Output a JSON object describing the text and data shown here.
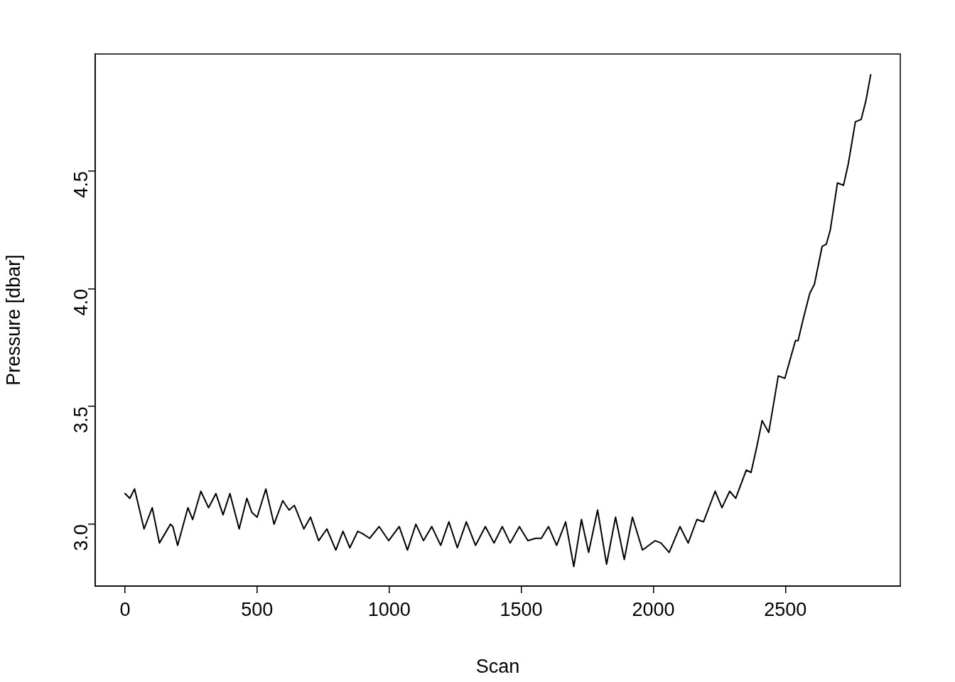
{
  "chart_data": {
    "type": "line",
    "xlabel": "Scan",
    "ylabel": "Pressure [dbar]",
    "marker": "none",
    "line_style": "solid",
    "color": "#000000",
    "x": [
      0,
      18,
      36,
      72,
      103,
      130,
      172,
      181,
      199,
      238,
      256,
      287,
      316,
      344,
      371,
      397,
      432,
      461,
      480,
      500,
      533,
      564,
      597,
      621,
      641,
      677,
      702,
      733,
      764,
      798,
      825,
      851,
      881,
      899,
      926,
      962,
      998,
      1038,
      1069,
      1101,
      1130,
      1161,
      1195,
      1226,
      1258,
      1292,
      1327,
      1364,
      1397,
      1428,
      1458,
      1493,
      1525,
      1554,
      1576,
      1603,
      1634,
      1668,
      1699,
      1728,
      1755,
      1789,
      1823,
      1857,
      1890,
      1921,
      1959,
      2007,
      2029,
      2060,
      2101,
      2132,
      2165,
      2190,
      2234,
      2260,
      2289,
      2312,
      2352,
      2370,
      2392,
      2412,
      2437,
      2458,
      2473,
      2498,
      2538,
      2548,
      2567,
      2592,
      2610,
      2639,
      2655,
      2670,
      2697,
      2720,
      2738,
      2765,
      2787,
      2805,
      2823
    ],
    "values": [
      3.13,
      3.11,
      3.15,
      2.98,
      3.07,
      2.92,
      3.0,
      2.99,
      2.91,
      3.07,
      3.02,
      3.14,
      3.07,
      3.13,
      3.04,
      3.13,
      2.98,
      3.11,
      3.05,
      3.03,
      3.15,
      3.0,
      3.1,
      3.06,
      3.08,
      2.98,
      3.03,
      2.93,
      2.98,
      2.89,
      2.97,
      2.9,
      2.97,
      2.96,
      2.94,
      2.99,
      2.93,
      2.99,
      2.89,
      3.0,
      2.93,
      2.99,
      2.91,
      3.01,
      2.9,
      3.01,
      2.91,
      2.99,
      2.92,
      2.99,
      2.92,
      2.99,
      2.93,
      2.94,
      2.94,
      2.99,
      2.91,
      3.01,
      2.82,
      3.02,
      2.88,
      3.06,
      2.83,
      3.03,
      2.85,
      3.03,
      2.89,
      2.93,
      2.92,
      2.88,
      2.99,
      2.92,
      3.02,
      3.01,
      3.14,
      3.07,
      3.14,
      3.11,
      3.23,
      3.22,
      3.33,
      3.44,
      3.39,
      3.53,
      3.63,
      3.62,
      3.78,
      3.78,
      3.87,
      3.98,
      4.02,
      4.18,
      4.19,
      4.25,
      4.45,
      4.44,
      4.53,
      4.71,
      4.72,
      4.8,
      4.91
    ],
    "xlim": [
      -113,
      2935
    ],
    "ylim": [
      2.737,
      4.998
    ],
    "xticks": [
      0,
      500,
      1000,
      1500,
      2000,
      2500
    ],
    "yticks": [
      {
        "value": 3,
        "label": "3.0"
      },
      {
        "value": 3.5,
        "label": "3.5"
      },
      {
        "value": 4,
        "label": "4.0"
      },
      {
        "value": 4.5,
        "label": "4.5"
      }
    ]
  }
}
